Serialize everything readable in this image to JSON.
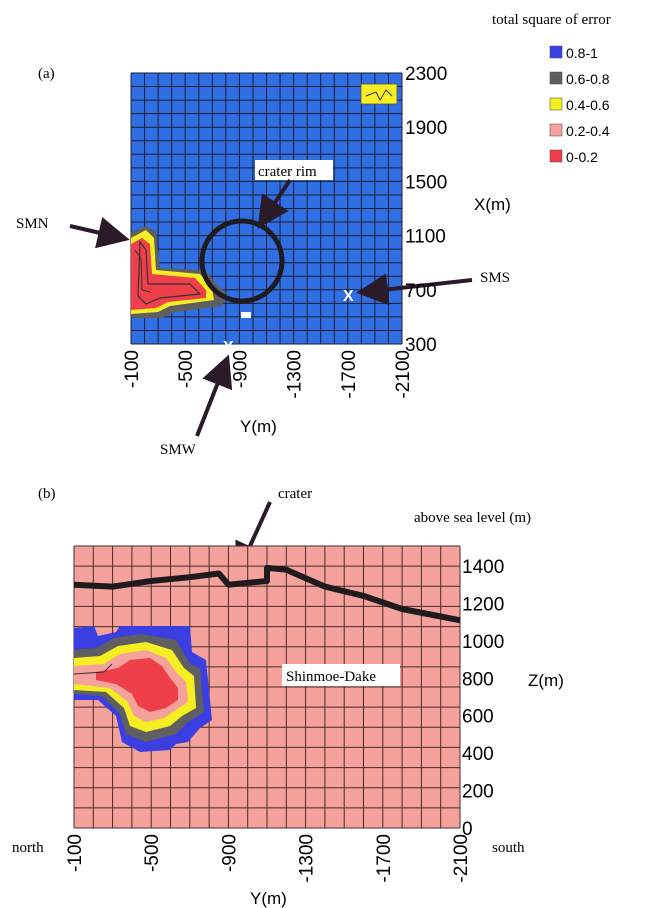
{
  "legend": {
    "title": "total square of error",
    "entries": [
      {
        "label": "0.8-1",
        "color": "#3b3ee0"
      },
      {
        "label": "0.6-0.8",
        "color": "#5f5f5f"
      },
      {
        "label": "0.4-0.6",
        "color": "#f4ee22"
      },
      {
        "label": "0.2-0.4",
        "color": "#f4a29b"
      },
      {
        "label": "0-0.2",
        "color": "#ef3f4a"
      }
    ]
  },
  "panel_a": {
    "tag": "(a)",
    "annotations": {
      "crater_rim": "crater rim",
      "smn": "SMN",
      "sms": "SMS",
      "smw": "SMW"
    },
    "chart_data": {
      "type": "heatmap",
      "xlabel": "Y(m)",
      "ylabel": "X(m)",
      "xlim": [
        -100,
        -2100
      ],
      "ylim": [
        300,
        2300
      ],
      "x_ticks": [
        "-100",
        "-500",
        "-900",
        "-1300",
        "-1700",
        "-2100"
      ],
      "y_ticks": [
        "300",
        "700",
        "1100",
        "1500",
        "1900",
        "2300"
      ],
      "background_range": "0.8-1",
      "anomaly_range": "0-0.2",
      "stations": [
        {
          "name": "SMN",
          "y": -100,
          "x": 1080
        },
        {
          "name": "SMS",
          "y": -1720,
          "x": 700
        },
        {
          "name": "SMW",
          "y": -850,
          "x": 300
        }
      ]
    }
  },
  "panel_b": {
    "tag": "(b)",
    "annotations": {
      "crater": "crater",
      "above_sea_level": "above sea level (m)",
      "volcano": "Shinmoe-Dake",
      "north": "north",
      "south": "south"
    },
    "chart_data": {
      "type": "heatmap",
      "xlabel": "Y(m)",
      "ylabel": "Z(m)",
      "xlim": [
        -100,
        -2100
      ],
      "ylim": [
        0,
        1400
      ],
      "x_ticks": [
        "-100",
        "-500",
        "-900",
        "-1300",
        "-1700",
        "-2100"
      ],
      "y_ticks": [
        "0",
        "200",
        "400",
        "600",
        "800",
        "1000",
        "1200",
        "1400"
      ],
      "background_range": "0.2-0.4",
      "anomaly_range": "0-0.2",
      "anomaly_center": {
        "y": -550,
        "z": 780
      },
      "topography": [
        {
          "y": -100,
          "z": 1300
        },
        {
          "y": -300,
          "z": 1290
        },
        {
          "y": -500,
          "z": 1320
        },
        {
          "y": -700,
          "z": 1340
        },
        {
          "y": -850,
          "z": 1360
        },
        {
          "y": -900,
          "z": 1300
        },
        {
          "y": -1100,
          "z": 1320
        },
        {
          "y": -1100,
          "z": 1390
        },
        {
          "y": -1200,
          "z": 1380
        },
        {
          "y": -1400,
          "z": 1290
        },
        {
          "y": -1600,
          "z": 1240
        },
        {
          "y": -1800,
          "z": 1170
        },
        {
          "y": -2000,
          "z": 1130
        },
        {
          "y": -2100,
          "z": 1110
        }
      ]
    }
  }
}
